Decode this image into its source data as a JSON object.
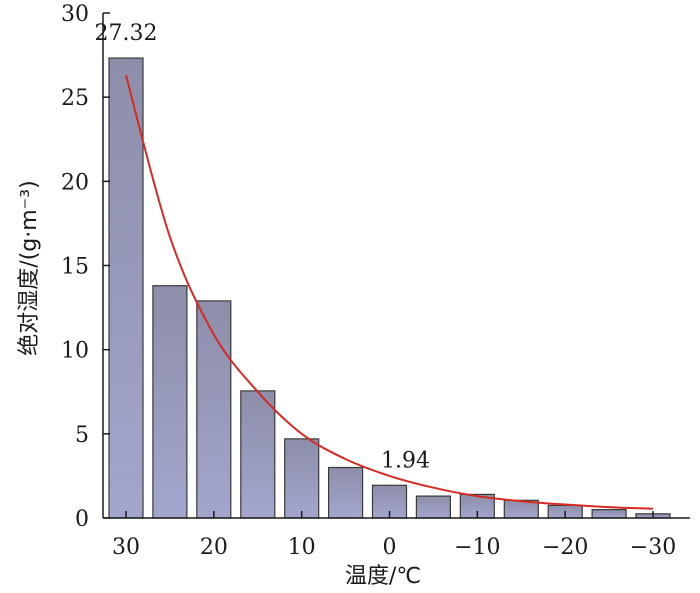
{
  "chart_data": {
    "type": "bar",
    "xlabel": "温度/℃",
    "ylabel": "绝对湿度/(g·m⁻³)",
    "ylim": [
      0,
      30
    ],
    "yticks": [
      0,
      5,
      10,
      15,
      20,
      25,
      30
    ],
    "xtick_labels": [
      "30",
      "20",
      "10",
      "0",
      "−10",
      "−20",
      "−30"
    ],
    "categories": [
      30,
      25,
      20,
      15,
      10,
      5,
      0,
      -5,
      -10,
      -15,
      -20,
      -25,
      -30
    ],
    "values": [
      27.32,
      13.8,
      12.9,
      7.55,
      4.7,
      3.0,
      1.94,
      1.3,
      1.4,
      1.05,
      0.75,
      0.5,
      0.25
    ],
    "data_labels": [
      {
        "category": 30,
        "text": "27.32"
      },
      {
        "category": 0,
        "text": "1.94"
      }
    ],
    "trend_line": {
      "type": "exponential",
      "x": [
        30,
        25,
        20,
        15,
        10,
        5,
        0,
        -5,
        -10,
        -15,
        -20,
        -25,
        -30
      ],
      "y": [
        26.3,
        16.7,
        10.9,
        7.5,
        5.0,
        3.5,
        2.5,
        1.8,
        1.3,
        1.0,
        0.8,
        0.65,
        0.55
      ]
    },
    "grid": false,
    "legend": "none",
    "colors": {
      "bar_top": "#8d8ea9",
      "bar_bottom": "#a3a6cd",
      "bar_edge": "#3a3a3a",
      "trend": "#d62a22",
      "axis": "#1a1a1a"
    }
  }
}
